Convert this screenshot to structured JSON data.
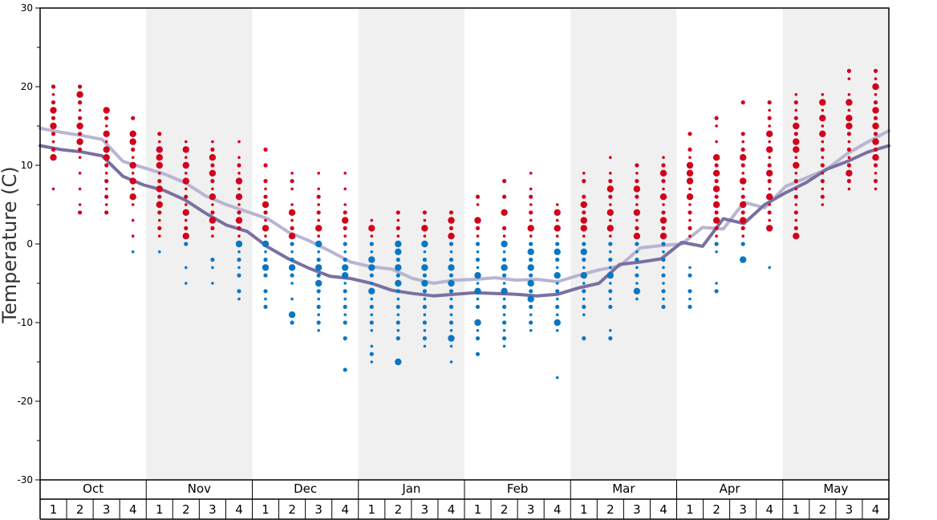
{
  "chart_data": {
    "type": "scatter",
    "title": "",
    "ylabel": "Temperature (C)",
    "ylim": [
      -30,
      30
    ],
    "y_ticks": [
      30,
      20,
      10,
      0,
      -10,
      -20,
      -30
    ],
    "grid": false,
    "months": [
      "Oct",
      "Nov",
      "Dec",
      "Jan",
      "Feb",
      "Mar",
      "Apr",
      "May"
    ],
    "week_labels": [
      "1",
      "2",
      "3",
      "4"
    ],
    "colors": {
      "warm_points": "#d0021b",
      "cold_points": "#0a77c4",
      "line_light": "#b9b4d2",
      "line_dark": "#7b6fa2",
      "band_shade": "#f0f0f0"
    },
    "series": [
      {
        "values": [
          14.7,
          14.2,
          13.8,
          13.3,
          10.5,
          9.7,
          8.9,
          7.8,
          6.1,
          5.0,
          4.1,
          3.2,
          1.5,
          0.4,
          -0.9,
          -2.3,
          -2.9,
          -3.2,
          -4.4,
          -5.0,
          -4.6,
          -4.5,
          -4.3,
          -4.6,
          -4.5,
          -4.8,
          -4.0,
          -3.3,
          -2.8,
          -0.5,
          -0.2,
          0.0,
          2.1,
          1.9,
          5.3,
          4.6,
          7.3,
          8.4,
          9.5,
          11.5,
          13.0,
          14.4
        ]
      },
      {
        "values": [
          12.5,
          12.0,
          11.7,
          11.2,
          8.6,
          7.5,
          6.8,
          5.6,
          3.9,
          2.4,
          1.6,
          -0.4,
          -1.9,
          -3.1,
          -4.1,
          -4.4,
          -5.0,
          -5.9,
          -6.3,
          -6.6,
          -6.4,
          -6.2,
          -6.3,
          -6.4,
          -6.6,
          -6.4,
          -5.6,
          -5.0,
          -2.6,
          -2.3,
          -1.9,
          0.2,
          -0.3,
          3.2,
          2.6,
          5.0,
          6.5,
          7.8,
          9.5,
          10.5,
          11.7,
          12.5
        ]
      }
    ],
    "scatter_points": [
      {
        "week": 1,
        "values": [
          20,
          19,
          18,
          17,
          16,
          15,
          14,
          13,
          12,
          11,
          7
        ],
        "big": [
          17,
          15,
          11
        ]
      },
      {
        "week": 2,
        "values": [
          20,
          19,
          18,
          17,
          16,
          15,
          14,
          13,
          12,
          11,
          9,
          7,
          5,
          4
        ],
        "big": [
          19,
          15,
          13
        ]
      },
      {
        "week": 3,
        "values": [
          17,
          16,
          15,
          14,
          13,
          12,
          11,
          10,
          9,
          8,
          7,
          6,
          5,
          4
        ],
        "big": [
          17,
          14,
          12,
          11
        ]
      },
      {
        "week": 4,
        "values": [
          16,
          14,
          13,
          12,
          11,
          10,
          9,
          8,
          7,
          6,
          5,
          3,
          1,
          -1
        ],
        "big": [
          14,
          13,
          10,
          8,
          6
        ]
      },
      {
        "week": 5,
        "values": [
          14,
          13,
          12,
          11,
          10,
          9,
          8,
          7,
          6,
          5,
          4,
          3,
          2,
          1,
          -1
        ],
        "big": [
          12,
          11,
          10,
          7,
          5
        ]
      },
      {
        "week": 6,
        "values": [
          13,
          12,
          11,
          10,
          9,
          8,
          7,
          6,
          5,
          4,
          3,
          2,
          1,
          0,
          -3,
          -5
        ],
        "big": [
          12,
          10,
          8,
          4,
          1
        ]
      },
      {
        "week": 7,
        "values": [
          13,
          12,
          11,
          10,
          9,
          8,
          7,
          6,
          5,
          4,
          3,
          2,
          1,
          -2,
          -3,
          -5
        ],
        "big": [
          11,
          9,
          6,
          3
        ]
      },
      {
        "week": 8,
        "values": [
          13,
          11,
          10,
          9,
          8,
          7,
          6,
          5,
          4,
          3,
          2,
          1,
          0,
          -1,
          -2,
          -3,
          -4,
          -6,
          -7
        ],
        "big": [
          8,
          6,
          3,
          0
        ]
      },
      {
        "week": 9,
        "values": [
          12,
          10,
          8,
          7,
          6,
          5,
          4,
          3,
          2,
          1,
          0,
          -1,
          -2,
          -3,
          -4,
          -6,
          -7,
          -8
        ],
        "big": [
          5,
          2,
          0,
          -3
        ]
      },
      {
        "week": 10,
        "values": [
          9,
          8,
          7,
          5,
          4,
          3,
          2,
          1,
          0,
          -1,
          -2,
          -3,
          -4,
          -5,
          -7,
          -9,
          -10
        ],
        "big": [
          4,
          1,
          -3,
          -9
        ]
      },
      {
        "week": 11,
        "values": [
          9,
          7,
          6,
          5,
          4,
          3,
          2,
          1,
          0,
          -1,
          -2,
          -3,
          -4,
          -5,
          -6,
          -7,
          -8,
          -9,
          -10,
          -11
        ],
        "big": [
          2,
          0,
          -3,
          -5
        ]
      },
      {
        "week": 12,
        "values": [
          9,
          7,
          5,
          4,
          3,
          2,
          1,
          0,
          -1,
          -2,
          -3,
          -4,
          -5,
          -6,
          -7,
          -8,
          -9,
          -10,
          -12,
          -16
        ],
        "big": [
          3,
          -3,
          -4
        ]
      },
      {
        "week": 13,
        "values": [
          3,
          2,
          1,
          0,
          -1,
          -2,
          -3,
          -4,
          -5,
          -6,
          -7,
          -8,
          -9,
          -10,
          -11,
          -13,
          -14,
          -15
        ],
        "big": [
          2,
          -2,
          -3,
          -6
        ]
      },
      {
        "week": 14,
        "values": [
          4,
          3,
          2,
          1,
          0,
          -1,
          -2,
          -3,
          -4,
          -5,
          -6,
          -7,
          -8,
          -9,
          -10,
          -11,
          -12,
          -15
        ],
        "big": [
          0,
          -1,
          -3,
          -5,
          -15
        ]
      },
      {
        "week": 15,
        "values": [
          4,
          3,
          2,
          1,
          0,
          -1,
          -2,
          -3,
          -4,
          -5,
          -6,
          -7,
          -8,
          -9,
          -10,
          -11,
          -12,
          -13
        ],
        "big": [
          2,
          0,
          -3,
          -5
        ]
      },
      {
        "week": 16,
        "values": [
          4,
          3,
          2,
          1,
          0,
          -1,
          -2,
          -3,
          -4,
          -5,
          -6,
          -7,
          -8,
          -9,
          -10,
          -11,
          -12,
          -13,
          -15
        ],
        "big": [
          3,
          1,
          -3,
          -5,
          -12
        ]
      },
      {
        "week": 17,
        "values": [
          6,
          5,
          3,
          2,
          1,
          0,
          -1,
          -2,
          -3,
          -4,
          -5,
          -6,
          -7,
          -8,
          -10,
          -11,
          -12,
          -14
        ],
        "big": [
          3,
          -4,
          -6,
          -10
        ]
      },
      {
        "week": 18,
        "values": [
          8,
          6,
          4,
          2,
          1,
          0,
          -1,
          -2,
          -3,
          -4,
          -5,
          -6,
          -7,
          -8,
          -9,
          -10,
          -11,
          -12,
          -13
        ],
        "big": [
          4,
          0,
          -3,
          -6
        ]
      },
      {
        "week": 19,
        "values": [
          9,
          7,
          6,
          5,
          4,
          3,
          2,
          1,
          0,
          -1,
          -2,
          -3,
          -4,
          -5,
          -6,
          -7,
          -8,
          -9,
          -10,
          -11
        ],
        "big": [
          2,
          -1,
          -3,
          -5,
          -7
        ]
      },
      {
        "week": 20,
        "values": [
          5,
          4,
          3,
          2,
          1,
          0,
          -1,
          -2,
          -3,
          -4,
          -5,
          -6,
          -7,
          -8,
          -9,
          -10,
          -11,
          -17
        ],
        "big": [
          4,
          2,
          -1,
          -4,
          -10
        ]
      },
      {
        "week": 21,
        "values": [
          9,
          8,
          6,
          5,
          4,
          3,
          2,
          1,
          0,
          -1,
          -2,
          -3,
          -4,
          -5,
          -6,
          -7,
          -8,
          -9,
          -12
        ],
        "big": [
          5,
          3,
          2,
          -1,
          -4
        ]
      },
      {
        "week": 22,
        "values": [
          11,
          9,
          8,
          7,
          6,
          5,
          4,
          3,
          2,
          1,
          0,
          -1,
          -2,
          -3,
          -4,
          -5,
          -6,
          -7,
          -8,
          -11,
          -12
        ],
        "big": [
          7,
          4,
          2,
          -4
        ]
      },
      {
        "week": 23,
        "values": [
          10,
          9,
          8,
          7,
          6,
          5,
          4,
          3,
          2,
          1,
          0,
          -1,
          -2,
          -3,
          -4,
          -5,
          -6,
          -7
        ],
        "big": [
          7,
          4,
          1,
          -6
        ]
      },
      {
        "week": 24,
        "values": [
          11,
          10,
          9,
          8,
          7,
          6,
          5,
          4,
          3,
          2,
          1,
          0,
          -1,
          -2,
          -3,
          -4,
          -5,
          -6,
          -7,
          -8
        ],
        "big": [
          9,
          6,
          3,
          1
        ]
      },
      {
        "week": 25,
        "values": [
          14,
          12,
          11,
          10,
          9,
          8,
          7,
          6,
          5,
          4,
          3,
          2,
          1,
          -3,
          -4,
          -6,
          -7,
          -8
        ],
        "big": [
          10,
          9,
          8,
          6
        ]
      },
      {
        "week": 26,
        "values": [
          16,
          15,
          13,
          11,
          10,
          9,
          8,
          7,
          6,
          5,
          4,
          3,
          2,
          1,
          0,
          -1,
          -5,
          -6
        ],
        "big": [
          11,
          9,
          7,
          5,
          3
        ]
      },
      {
        "week": 27,
        "values": [
          18,
          14,
          13,
          12,
          11,
          10,
          9,
          8,
          7,
          6,
          5,
          4,
          3,
          2,
          1,
          0,
          -2
        ],
        "big": [
          11,
          8,
          5,
          3,
          -2
        ]
      },
      {
        "week": 28,
        "values": [
          18,
          17,
          16,
          15,
          14,
          13,
          12,
          11,
          10,
          9,
          8,
          7,
          6,
          5,
          4,
          3,
          2,
          -3
        ],
        "big": [
          14,
          12,
          9,
          6,
          2
        ]
      },
      {
        "week": 29,
        "values": [
          19,
          18,
          17,
          16,
          15,
          14,
          13,
          12,
          11,
          10,
          9,
          8,
          7,
          6,
          5,
          4,
          3,
          2,
          1
        ],
        "big": [
          15,
          13,
          12,
          10,
          1
        ]
      },
      {
        "week": 30,
        "values": [
          19,
          18,
          17,
          16,
          15,
          14,
          13,
          12,
          11,
          10,
          9,
          8,
          7,
          6,
          5
        ],
        "big": [
          18,
          16,
          14
        ]
      },
      {
        "week": 31,
        "values": [
          22,
          21,
          19,
          18,
          17,
          16,
          15,
          14,
          13,
          12,
          11,
          10,
          9,
          8,
          7
        ],
        "big": [
          18,
          16,
          15,
          9
        ]
      },
      {
        "week": 32,
        "values": [
          22,
          21,
          20,
          19,
          18,
          17,
          16,
          15,
          14,
          13,
          12,
          11,
          10,
          9,
          8,
          7
        ],
        "big": [
          20,
          17,
          15,
          13,
          11
        ]
      }
    ]
  }
}
